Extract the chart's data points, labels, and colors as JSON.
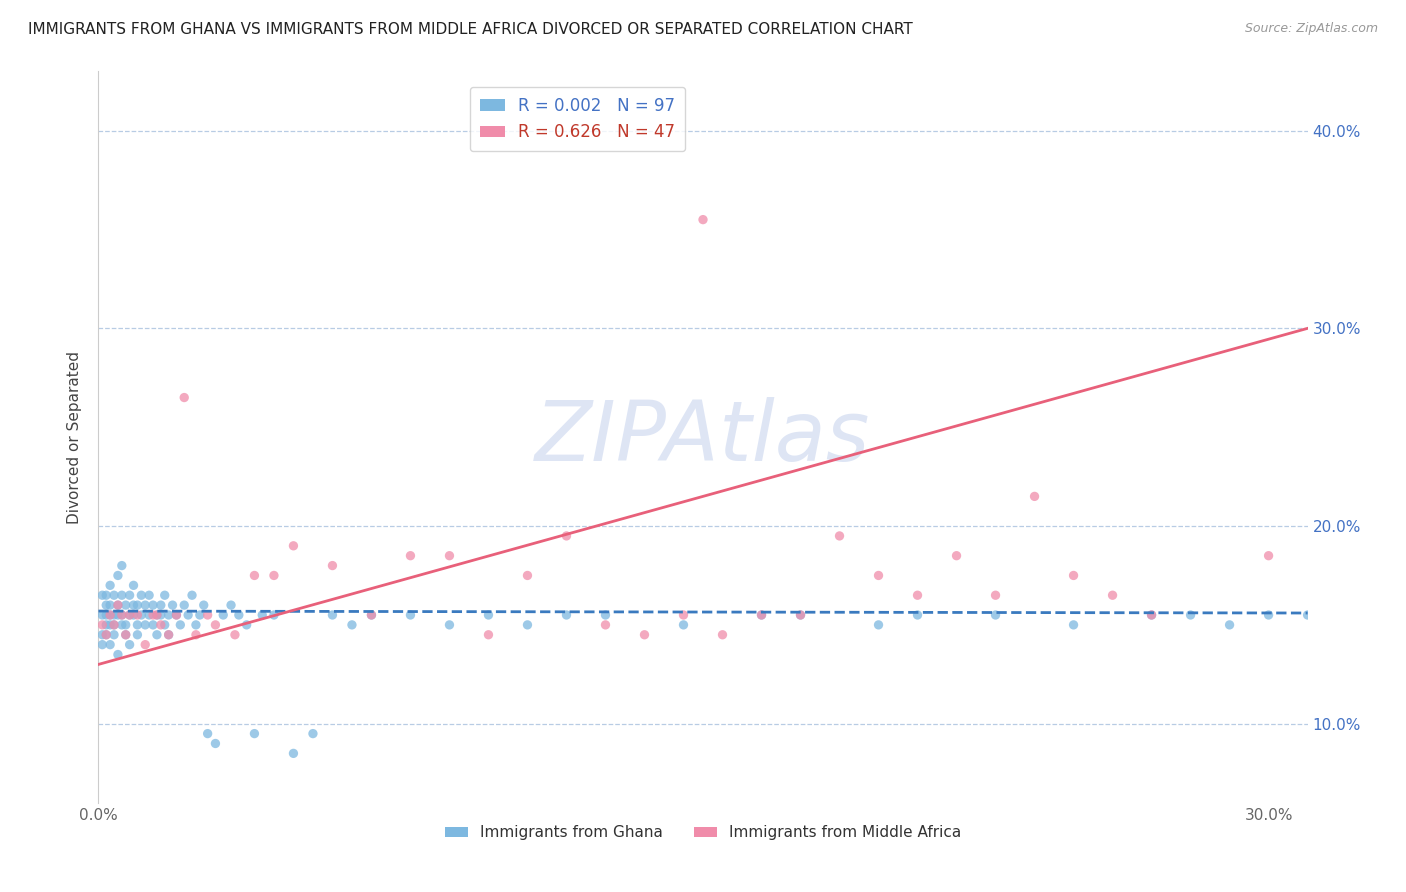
{
  "title": "IMMIGRANTS FROM GHANA VS IMMIGRANTS FROM MIDDLE AFRICA DIVORCED OR SEPARATED CORRELATION CHART",
  "source": "Source: ZipAtlas.com",
  "ylabel": "Divorced or Separated",
  "xlim": [
    0.0,
    0.31
  ],
  "ylim": [
    0.06,
    0.43
  ],
  "ytick_vals": [
    0.1,
    0.2,
    0.3,
    0.4
  ],
  "ytick_labels": [
    "10.0%",
    "20.0%",
    "30.0%",
    "40.0%"
  ],
  "xtick_vals": [
    0.0,
    0.05,
    0.1,
    0.15,
    0.2,
    0.25,
    0.3
  ],
  "xtick_labels": [
    "0.0%",
    "",
    "",
    "",
    "",
    "",
    "30.0%"
  ],
  "ghana_color": "#7db8e0",
  "middle_africa_color": "#f08caa",
  "ghana_line_color": "#3a7abf",
  "middle_africa_line_color": "#e8607a",
  "ghana_R": 0.002,
  "ghana_N": 97,
  "middle_africa_R": 0.626,
  "middle_africa_N": 47,
  "watermark": "ZIPAtlas",
  "watermark_color": "#c8d4ee",
  "ghana_x": [
    0.001,
    0.001,
    0.001,
    0.001,
    0.002,
    0.002,
    0.002,
    0.002,
    0.002,
    0.003,
    0.003,
    0.003,
    0.003,
    0.003,
    0.004,
    0.004,
    0.004,
    0.004,
    0.005,
    0.005,
    0.005,
    0.005,
    0.006,
    0.006,
    0.006,
    0.006,
    0.007,
    0.007,
    0.007,
    0.008,
    0.008,
    0.008,
    0.009,
    0.009,
    0.009,
    0.01,
    0.01,
    0.01,
    0.011,
    0.011,
    0.012,
    0.012,
    0.013,
    0.013,
    0.014,
    0.014,
    0.015,
    0.015,
    0.016,
    0.016,
    0.017,
    0.017,
    0.018,
    0.018,
    0.019,
    0.02,
    0.021,
    0.022,
    0.023,
    0.024,
    0.025,
    0.026,
    0.027,
    0.028,
    0.03,
    0.032,
    0.034,
    0.036,
    0.038,
    0.04,
    0.042,
    0.045,
    0.05,
    0.055,
    0.06,
    0.065,
    0.07,
    0.08,
    0.09,
    0.1,
    0.11,
    0.12,
    0.13,
    0.15,
    0.17,
    0.18,
    0.2,
    0.21,
    0.23,
    0.25,
    0.27,
    0.28,
    0.29,
    0.3,
    0.31,
    0.32,
    0.33
  ],
  "ghana_y": [
    0.155,
    0.145,
    0.165,
    0.14,
    0.15,
    0.16,
    0.155,
    0.145,
    0.165,
    0.15,
    0.16,
    0.155,
    0.17,
    0.14,
    0.155,
    0.165,
    0.15,
    0.145,
    0.16,
    0.155,
    0.175,
    0.135,
    0.165,
    0.15,
    0.155,
    0.18,
    0.15,
    0.16,
    0.145,
    0.155,
    0.165,
    0.14,
    0.16,
    0.155,
    0.17,
    0.15,
    0.16,
    0.145,
    0.155,
    0.165,
    0.15,
    0.16,
    0.155,
    0.165,
    0.15,
    0.16,
    0.155,
    0.145,
    0.16,
    0.155,
    0.15,
    0.165,
    0.155,
    0.145,
    0.16,
    0.155,
    0.15,
    0.16,
    0.155,
    0.165,
    0.15,
    0.155,
    0.16,
    0.095,
    0.09,
    0.155,
    0.16,
    0.155,
    0.15,
    0.095,
    0.155,
    0.155,
    0.085,
    0.095,
    0.155,
    0.15,
    0.155,
    0.155,
    0.15,
    0.155,
    0.15,
    0.155,
    0.155,
    0.15,
    0.155,
    0.155,
    0.15,
    0.155,
    0.155,
    0.15,
    0.155,
    0.155,
    0.15,
    0.155,
    0.155,
    0.15,
    0.155
  ],
  "middle_x": [
    0.001,
    0.002,
    0.003,
    0.004,
    0.005,
    0.006,
    0.007,
    0.008,
    0.01,
    0.012,
    0.014,
    0.015,
    0.016,
    0.018,
    0.02,
    0.022,
    0.025,
    0.028,
    0.03,
    0.035,
    0.04,
    0.045,
    0.05,
    0.06,
    0.07,
    0.08,
    0.09,
    0.1,
    0.11,
    0.12,
    0.13,
    0.14,
    0.15,
    0.155,
    0.16,
    0.17,
    0.18,
    0.19,
    0.2,
    0.21,
    0.22,
    0.23,
    0.24,
    0.25,
    0.26,
    0.27,
    0.3
  ],
  "middle_y": [
    0.15,
    0.145,
    0.155,
    0.15,
    0.16,
    0.155,
    0.145,
    0.155,
    0.155,
    0.14,
    0.155,
    0.155,
    0.15,
    0.145,
    0.155,
    0.265,
    0.145,
    0.155,
    0.15,
    0.145,
    0.175,
    0.175,
    0.19,
    0.18,
    0.155,
    0.185,
    0.185,
    0.145,
    0.175,
    0.195,
    0.15,
    0.145,
    0.155,
    0.355,
    0.145,
    0.155,
    0.155,
    0.195,
    0.175,
    0.165,
    0.185,
    0.165,
    0.215,
    0.175,
    0.165,
    0.155,
    0.185
  ],
  "ghana_line_x": [
    0.0,
    0.31
  ],
  "ghana_line_y": [
    0.157,
    0.156
  ],
  "middle_line_x": [
    0.0,
    0.31
  ],
  "middle_line_y": [
    0.13,
    0.3
  ]
}
